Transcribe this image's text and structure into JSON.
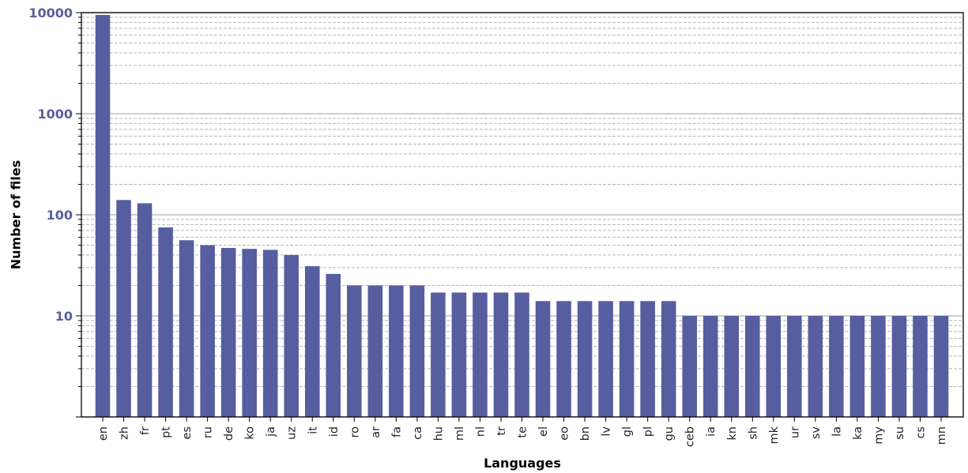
{
  "chart_data": {
    "type": "bar",
    "title": "",
    "xlabel": "Languages",
    "ylabel": "Number of files",
    "yscale": "log",
    "ylim": [
      1,
      10000
    ],
    "grid": {
      "major": true,
      "minor": true,
      "minor_style": "dashed"
    },
    "bar_color": "#565ea0",
    "ytick_color": "#5a609b",
    "yticks": [
      10,
      100,
      1000,
      10000
    ],
    "yticklabels": [
      "10",
      "100",
      "1000",
      "10000"
    ],
    "categories": [
      "en",
      "zh",
      "fr",
      "pt",
      "es",
      "ru",
      "de",
      "ko",
      "ja",
      "uz",
      "it",
      "id",
      "ro",
      "ar",
      "fa",
      "ca",
      "hu",
      "ml",
      "nl",
      "tr",
      "te",
      "el",
      "eo",
      "bn",
      "lv",
      "gl",
      "pl",
      "gu",
      "ceb",
      "ia",
      "kn",
      "sh",
      "mk",
      "ur",
      "sv",
      "la",
      "ka",
      "my",
      "su",
      "cs",
      "mn"
    ],
    "values": [
      9500,
      140,
      130,
      75,
      56,
      50,
      47,
      46,
      45,
      40,
      31,
      26,
      20,
      20,
      20,
      20,
      17,
      17,
      17,
      17,
      17,
      14,
      14,
      14,
      14,
      14,
      14,
      14,
      10,
      10,
      10,
      10,
      10,
      10,
      10,
      10,
      10,
      10,
      10,
      10,
      10
    ]
  }
}
